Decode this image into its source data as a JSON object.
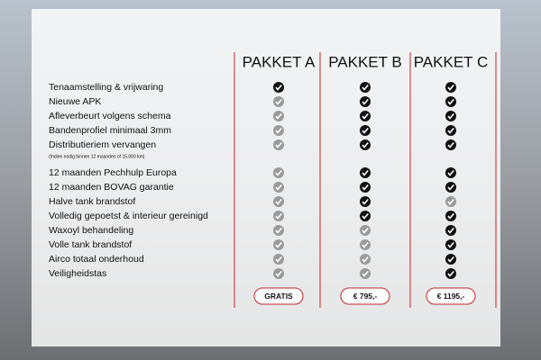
{
  "table": {
    "headers": [
      "PAKKET A",
      "PAKKET B",
      "PAKKET C"
    ],
    "rows": [
      {
        "label": "Tenaamstelling & vrijwaring",
        "included": [
          true,
          true,
          true
        ]
      },
      {
        "label": "Nieuwe APK",
        "included": [
          false,
          true,
          true
        ]
      },
      {
        "label": "Afleverbeurt volgens schema",
        "included": [
          false,
          true,
          true
        ]
      },
      {
        "label": "Bandenprofiel minimaal 3mm",
        "included": [
          false,
          true,
          true
        ]
      },
      {
        "label": "Distributieriem vervangen",
        "included": [
          false,
          true,
          true
        ],
        "note": "(Indien nodig binnen 12 maanden of 15.000 km)"
      },
      {
        "label": "12 maanden Pechhulp Europa",
        "included": [
          false,
          true,
          true
        ]
      },
      {
        "label": "12 maanden BOVAG garantie",
        "included": [
          false,
          true,
          true
        ]
      },
      {
        "label": "Halve tank brandstof",
        "included": [
          false,
          true,
          false
        ]
      },
      {
        "label": "Volledig gepoetst & interieur gereinigd",
        "included": [
          false,
          true,
          true
        ]
      },
      {
        "label": "Waxoyl behandeling",
        "included": [
          false,
          false,
          true
        ]
      },
      {
        "label": "Volle tank brandstof",
        "included": [
          false,
          false,
          true
        ]
      },
      {
        "label": "Airco totaal onderhoud",
        "included": [
          false,
          false,
          true
        ]
      },
      {
        "label": "Veiligheidstas",
        "included": [
          false,
          false,
          true
        ]
      }
    ],
    "prices": [
      "GRATIS",
      "€ 795,-",
      "€ 1195,-"
    ]
  }
}
